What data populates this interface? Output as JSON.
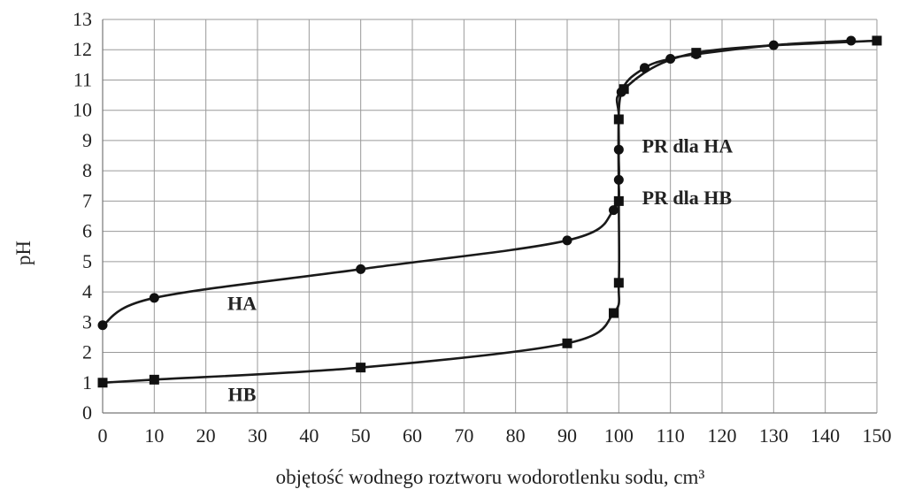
{
  "chart_data": {
    "type": "line",
    "xlabel": "objętość wodnego roztworu wodorotlenku sodu, cm³",
    "ylabel": "pH",
    "xlim": [
      0,
      150
    ],
    "ylim": [
      0,
      13
    ],
    "x_ticks": [
      0,
      10,
      20,
      30,
      40,
      50,
      60,
      70,
      80,
      90,
      100,
      110,
      120,
      130,
      140,
      150
    ],
    "y_ticks": [
      0,
      1,
      2,
      3,
      4,
      5,
      6,
      7,
      8,
      9,
      10,
      11,
      12,
      13
    ],
    "grid": true,
    "series": [
      {
        "name": "HA",
        "marker": "circle",
        "x": [
          0,
          10,
          50,
          90,
          99,
          100,
          100,
          100.5,
          105,
          110,
          115,
          130,
          145
        ],
        "y": [
          2.9,
          3.8,
          4.75,
          5.7,
          6.7,
          7.7,
          8.7,
          10.6,
          11.4,
          11.7,
          11.85,
          12.15,
          12.3
        ]
      },
      {
        "name": "HB",
        "marker": "square",
        "x": [
          0,
          10,
          50,
          90,
          99,
          100,
          100,
          100,
          101,
          115,
          150
        ],
        "y": [
          1.0,
          1.1,
          1.5,
          2.3,
          3.3,
          4.3,
          7.0,
          9.7,
          10.7,
          11.9,
          12.3
        ]
      }
    ],
    "annotations": [
      {
        "id": "ha_label",
        "text": "HA",
        "x": 27,
        "y": 3.4
      },
      {
        "id": "hb_label",
        "text": "HB",
        "x": 27,
        "y": 0.4
      },
      {
        "id": "pr_ha",
        "text": "PR dla HA",
        "x": 104.5,
        "y": 8.6
      },
      {
        "id": "pr_hb",
        "text": "PR dla HB",
        "x": 104.5,
        "y": 6.9
      }
    ]
  }
}
